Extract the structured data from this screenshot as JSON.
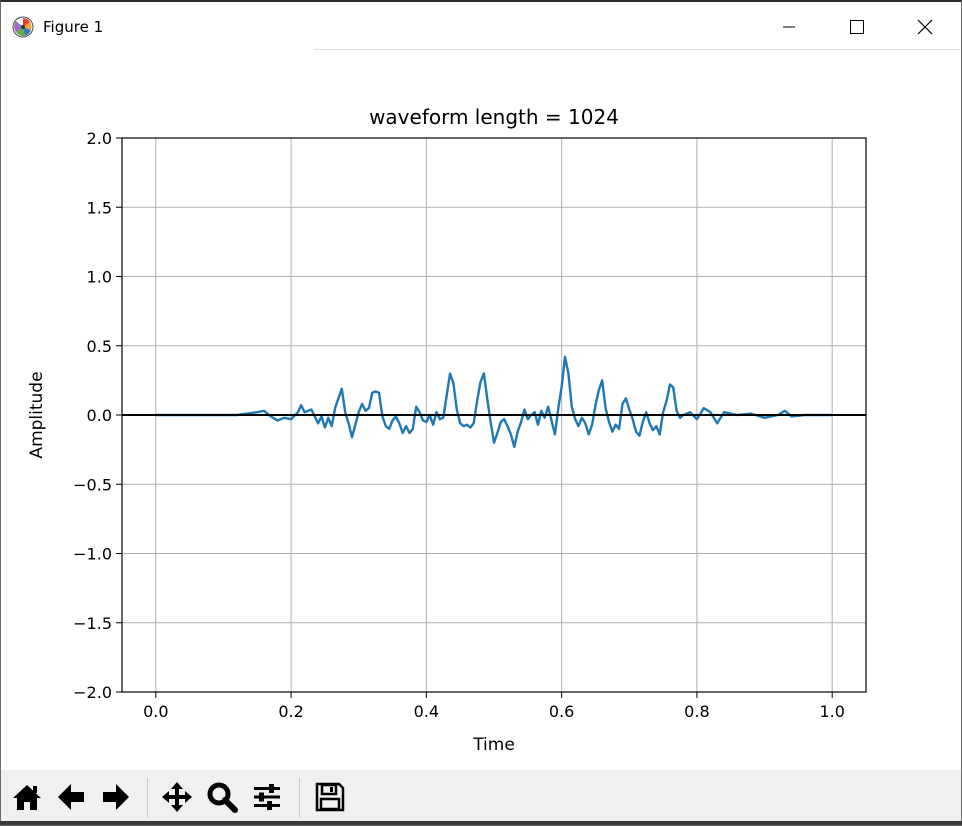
{
  "window": {
    "title": "Figure 1",
    "icon": "matplotlib-logo-icon",
    "controls": [
      "minimize-icon",
      "maximize-icon",
      "close-icon"
    ]
  },
  "toolbar": {
    "buttons": [
      {
        "name": "home-button",
        "icon": "home-icon"
      },
      {
        "name": "back-button",
        "icon": "arrow-left-icon"
      },
      {
        "name": "forward-button",
        "icon": "arrow-right-icon"
      },
      {
        "name": "pan-button",
        "icon": "move-icon"
      },
      {
        "name": "zoom-button",
        "icon": "magnifier-icon"
      },
      {
        "name": "configure-subplots-button",
        "icon": "sliders-icon"
      },
      {
        "name": "save-button",
        "icon": "floppy-disk-icon"
      }
    ]
  },
  "chart_data": {
    "type": "line",
    "title": "waveform length = 1024",
    "xlabel": "Time",
    "ylabel": "Amplitude",
    "xlim": [
      -0.05,
      1.05
    ],
    "ylim": [
      -2.0,
      2.0
    ],
    "xticks": [
      "0.0",
      "0.2",
      "0.4",
      "0.6",
      "0.8",
      "1.0"
    ],
    "yticks": [
      "2.0",
      "1.5",
      "1.0",
      "0.5",
      "0.0",
      "−0.5",
      "−1.0",
      "−1.5",
      "−2.0"
    ],
    "grid": true,
    "series": [
      {
        "color": "#1f77b4",
        "x": [
          0.0,
          0.12,
          0.15,
          0.16,
          0.17,
          0.18,
          0.19,
          0.2,
          0.21,
          0.215,
          0.22,
          0.23,
          0.24,
          0.245,
          0.25,
          0.255,
          0.26,
          0.265,
          0.27,
          0.275,
          0.28,
          0.285,
          0.29,
          0.3,
          0.305,
          0.31,
          0.315,
          0.32,
          0.325,
          0.33,
          0.335,
          0.34,
          0.345,
          0.35,
          0.355,
          0.36,
          0.365,
          0.37,
          0.375,
          0.38,
          0.385,
          0.39,
          0.395,
          0.4,
          0.405,
          0.41,
          0.415,
          0.42,
          0.425,
          0.43,
          0.435,
          0.44,
          0.445,
          0.45,
          0.455,
          0.46,
          0.465,
          0.47,
          0.475,
          0.48,
          0.485,
          0.49,
          0.495,
          0.5,
          0.505,
          0.51,
          0.515,
          0.52,
          0.525,
          0.53,
          0.535,
          0.54,
          0.545,
          0.55,
          0.555,
          0.56,
          0.565,
          0.57,
          0.575,
          0.58,
          0.585,
          0.59,
          0.595,
          0.6,
          0.605,
          0.61,
          0.615,
          0.62,
          0.625,
          0.63,
          0.635,
          0.64,
          0.645,
          0.65,
          0.655,
          0.66,
          0.665,
          0.67,
          0.675,
          0.68,
          0.685,
          0.69,
          0.695,
          0.7,
          0.705,
          0.71,
          0.715,
          0.72,
          0.725,
          0.73,
          0.735,
          0.74,
          0.745,
          0.75,
          0.755,
          0.76,
          0.765,
          0.77,
          0.775,
          0.78,
          0.79,
          0.8,
          0.81,
          0.82,
          0.83,
          0.84,
          0.86,
          0.88,
          0.9,
          0.92,
          0.93,
          0.94,
          0.96,
          1.0
        ],
        "y": [
          0.0,
          0.0,
          0.02,
          0.03,
          -0.01,
          -0.04,
          -0.02,
          -0.03,
          0.02,
          0.07,
          0.02,
          0.04,
          -0.06,
          -0.01,
          -0.09,
          -0.02,
          -0.08,
          0.05,
          0.12,
          0.19,
          0.02,
          -0.06,
          -0.16,
          0.02,
          0.08,
          0.03,
          0.05,
          0.16,
          0.17,
          0.16,
          -0.01,
          -0.08,
          -0.1,
          -0.04,
          -0.01,
          -0.06,
          -0.13,
          -0.08,
          -0.13,
          -0.1,
          0.06,
          0.02,
          -0.04,
          -0.05,
          0.0,
          -0.07,
          0.02,
          -0.03,
          -0.02,
          0.14,
          0.3,
          0.23,
          0.04,
          -0.06,
          -0.08,
          -0.07,
          -0.09,
          -0.06,
          0.1,
          0.24,
          0.3,
          0.12,
          -0.05,
          -0.2,
          -0.13,
          -0.05,
          -0.03,
          -0.08,
          -0.14,
          -0.23,
          -0.12,
          -0.05,
          0.04,
          -0.03,
          0.0,
          0.02,
          -0.07,
          0.03,
          -0.02,
          0.06,
          -0.04,
          -0.14,
          0.05,
          0.2,
          0.42,
          0.3,
          0.06,
          -0.03,
          -0.08,
          -0.02,
          -0.06,
          -0.14,
          -0.07,
          0.07,
          0.18,
          0.25,
          0.05,
          -0.05,
          -0.12,
          -0.07,
          -0.1,
          0.08,
          0.12,
          0.04,
          -0.03,
          -0.12,
          -0.15,
          -0.05,
          0.02,
          -0.06,
          -0.11,
          -0.08,
          -0.14,
          0.02,
          0.1,
          0.22,
          0.2,
          0.03,
          -0.02,
          0.0,
          0.02,
          -0.03,
          0.05,
          0.02,
          -0.06,
          0.02,
          0.0,
          0.01,
          -0.02,
          0.0,
          0.03,
          -0.01,
          0.0,
          0.0
        ]
      },
      {
        "color": "#000000",
        "x": [
          -0.05,
          1.05
        ],
        "y": [
          0.0,
          0.0
        ]
      }
    ]
  }
}
